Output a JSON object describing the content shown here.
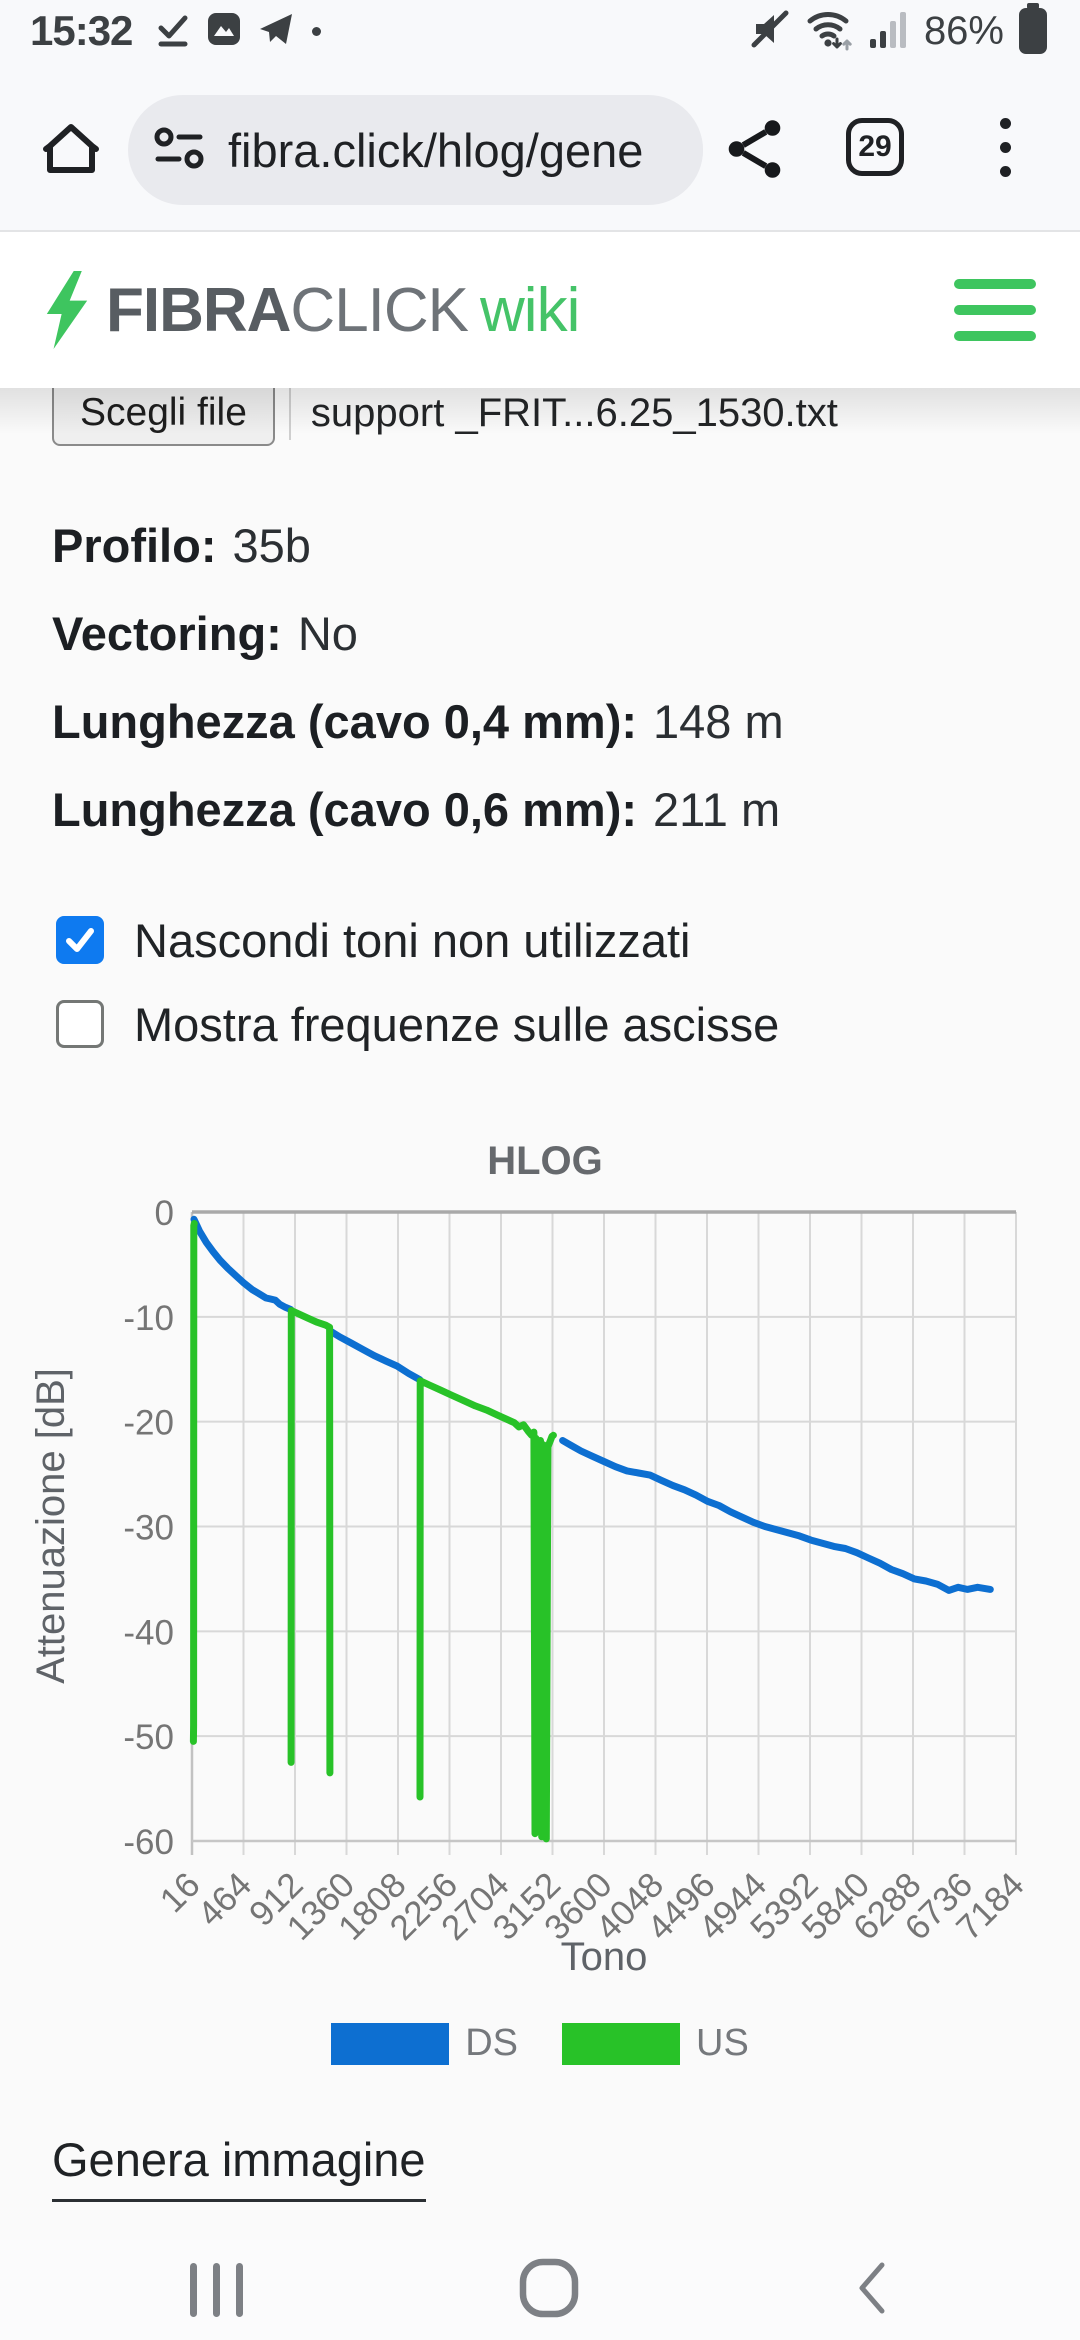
{
  "status_bar": {
    "time": "15:32",
    "battery_percent": "86%"
  },
  "browser": {
    "url": "fibra.click/hlog/gene",
    "tab_count": "29"
  },
  "site_header": {
    "brand_bold": "FIBRA",
    "brand_light": "CLICK",
    "brand_suffix": "wiki"
  },
  "file_input": {
    "button_label": "Scegli file",
    "filename": "support _FRIT...6.25_1530.txt"
  },
  "info": [
    {
      "label": "Profilo:",
      "value": "35b"
    },
    {
      "label": "Vectoring:",
      "value": "No"
    },
    {
      "label": "Lunghezza (cavo 0,4 mm):",
      "value": "148 m"
    },
    {
      "label": "Lunghezza (cavo 0,6 mm):",
      "value": "211 m"
    }
  ],
  "checkboxes": [
    {
      "label": "Nascondi toni non utilizzati",
      "checked": true
    },
    {
      "label": "Mostra frequenze sulle ascisse",
      "checked": false
    }
  ],
  "colors": {
    "accent_green": "#3ec55f",
    "checkbox_blue": "#0e7af0",
    "ds_blue": "#0d6fd1",
    "us_green": "#28c228"
  },
  "chart_data": {
    "type": "line",
    "title": "HLOG",
    "xlabel": "Tono",
    "ylabel": "Attenuazione [dB]",
    "xlim": [
      16,
      7184
    ],
    "ylim": [
      -60,
      0
    ],
    "xticks": [
      16,
      464,
      912,
      1360,
      1808,
      2256,
      2704,
      3152,
      3600,
      4048,
      4496,
      4944,
      5392,
      5840,
      6288,
      6736,
      7184
    ],
    "yticks": [
      0,
      -10,
      -20,
      -30,
      -40,
      -50,
      -60
    ],
    "grid": true,
    "legend_position": "bottom",
    "series": [
      {
        "name": "DS",
        "color": "#0d6fd1",
        "segments": [
          [
            [
              33,
              -0.7
            ],
            [
              80,
              -1.8
            ],
            [
              140,
              -2.9
            ],
            [
              200,
              -3.8
            ],
            [
              260,
              -4.6
            ],
            [
              330,
              -5.4
            ],
            [
              400,
              -6.1
            ],
            [
              470,
              -6.8
            ],
            [
              540,
              -7.4
            ],
            [
              600,
              -7.8
            ],
            [
              660,
              -8.2
            ],
            [
              700,
              -8.3
            ],
            [
              740,
              -8.4
            ],
            [
              780,
              -8.8
            ],
            [
              830,
              -9.1
            ],
            [
              875,
              -9.3
            ]
          ],
          [
            [
              1225,
              -11.4
            ],
            [
              1300,
              -11.9
            ],
            [
              1400,
              -12.5
            ],
            [
              1500,
              -13.1
            ],
            [
              1600,
              -13.7
            ],
            [
              1700,
              -14.2
            ],
            [
              1800,
              -14.7
            ],
            [
              1900,
              -15.4
            ],
            [
              1998,
              -16.0
            ]
          ],
          [
            [
              3240,
              -21.8
            ],
            [
              3320,
              -22.3
            ],
            [
              3400,
              -22.8
            ],
            [
              3500,
              -23.3
            ],
            [
              3600,
              -23.8
            ],
            [
              3700,
              -24.3
            ],
            [
              3800,
              -24.7
            ],
            [
              3900,
              -24.9
            ],
            [
              4000,
              -25.1
            ],
            [
              4100,
              -25.6
            ],
            [
              4200,
              -26.1
            ],
            [
              4300,
              -26.5
            ],
            [
              4400,
              -27.0
            ],
            [
              4500,
              -27.6
            ],
            [
              4600,
              -28.0
            ],
            [
              4700,
              -28.6
            ],
            [
              4800,
              -29.1
            ],
            [
              4900,
              -29.6
            ],
            [
              5000,
              -30.0
            ],
            [
              5100,
              -30.3
            ],
            [
              5200,
              -30.6
            ],
            [
              5300,
              -30.9
            ],
            [
              5400,
              -31.3
            ],
            [
              5500,
              -31.6
            ],
            [
              5600,
              -31.9
            ],
            [
              5700,
              -32.1
            ],
            [
              5800,
              -32.5
            ],
            [
              5900,
              -33.0
            ],
            [
              6000,
              -33.5
            ],
            [
              6100,
              -34.1
            ],
            [
              6200,
              -34.5
            ],
            [
              6300,
              -35.0
            ],
            [
              6400,
              -35.2
            ],
            [
              6500,
              -35.5
            ],
            [
              6600,
              -36.1
            ],
            [
              6680,
              -35.8
            ],
            [
              6760,
              -36.0
            ],
            [
              6850,
              -35.8
            ],
            [
              6960,
              -36.0
            ]
          ]
        ]
      },
      {
        "name": "US",
        "color": "#28c228",
        "segments": [
          [
            [
              28,
              -50.5
            ],
            [
              30,
              -49.0
            ],
            [
              31,
              -20.0
            ],
            [
              32,
              -1.3
            ],
            [
              36,
              -1.1
            ]
          ],
          [
            [
              878,
              -52.5
            ],
            [
              880,
              -9.4
            ],
            [
              940,
              -9.7
            ],
            [
              1020,
              -10.1
            ],
            [
              1100,
              -10.5
            ],
            [
              1180,
              -10.8
            ],
            [
              1213,
              -11.0
            ],
            [
              1216,
              -53.5
            ]
          ],
          [
            [
              1999,
              -55.8
            ],
            [
              2001,
              -16.1
            ],
            [
              2080,
              -16.5
            ],
            [
              2180,
              -17.0
            ],
            [
              2280,
              -17.5
            ],
            [
              2380,
              -18.0
            ],
            [
              2480,
              -18.5
            ],
            [
              2580,
              -18.9
            ],
            [
              2680,
              -19.4
            ],
            [
              2760,
              -19.8
            ],
            [
              2820,
              -20.1
            ],
            [
              2860,
              -20.5
            ],
            [
              2900,
              -20.3
            ],
            [
              2940,
              -20.9
            ],
            [
              2970,
              -21.3
            ],
            [
              2990,
              -21.0
            ],
            [
              3000,
              -59.3
            ],
            [
              3008,
              -21.6
            ],
            [
              3030,
              -22.0
            ],
            [
              3048,
              -21.8
            ],
            [
              3058,
              -59.6
            ],
            [
              3072,
              -22.2
            ],
            [
              3090,
              -22.4
            ],
            [
              3098,
              -59.8
            ],
            [
              3112,
              -22.4
            ],
            [
              3130,
              -21.9
            ],
            [
              3148,
              -21.4
            ],
            [
              3160,
              -21.3
            ]
          ]
        ]
      }
    ]
  },
  "actions": {
    "generate_label": "Genera immagine"
  }
}
